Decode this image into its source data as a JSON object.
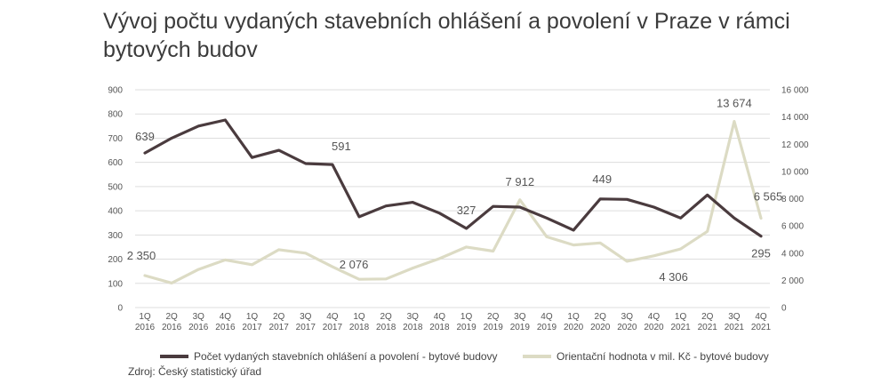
{
  "title": "Vývoj počtu vydaných stavebních ohlášení a povolení v Praze v rámci bytových budov",
  "source": "Zdroj: Český statistický úřad",
  "colors": {
    "count": "#4a3b3e",
    "value": "#dcdbc4",
    "grid": "#dddddd",
    "text": "#555555"
  },
  "chart_data": {
    "type": "line",
    "categories": [
      [
        "1Q",
        "2016"
      ],
      [
        "2Q",
        "2016"
      ],
      [
        "3Q",
        "2016"
      ],
      [
        "4Q",
        "2016"
      ],
      [
        "1Q",
        "2017"
      ],
      [
        "2Q",
        "2017"
      ],
      [
        "3Q",
        "2017"
      ],
      [
        "4Q",
        "2017"
      ],
      [
        "1Q",
        "2018"
      ],
      [
        "2Q",
        "2018"
      ],
      [
        "3Q",
        "2018"
      ],
      [
        "4Q",
        "2018"
      ],
      [
        "1Q",
        "2019"
      ],
      [
        "2Q",
        "2019"
      ],
      [
        "3Q",
        "2019"
      ],
      [
        "4Q",
        "2019"
      ],
      [
        "1Q",
        "2020"
      ],
      [
        "2Q",
        "2020"
      ],
      [
        "3Q",
        "2020"
      ],
      [
        "4Q",
        "2020"
      ],
      [
        "1Q",
        "2021"
      ],
      [
        "2Q",
        "2021"
      ],
      [
        "3Q",
        "2021"
      ],
      [
        "4Q",
        "2021"
      ]
    ],
    "y_left": {
      "min": 0,
      "max": 900,
      "step": 100,
      "tick_labels": [
        "0",
        "100",
        "200",
        "300",
        "400",
        "500",
        "600",
        "700",
        "800",
        "900"
      ]
    },
    "y_right": {
      "min": 0,
      "max": 16000,
      "step": 2000,
      "tick_labels": [
        "0",
        "2 000",
        "4 000",
        "6 000",
        "8 000",
        "10 000",
        "12 000",
        "14 000",
        "16 000"
      ]
    },
    "series": [
      {
        "name": "Počet vydaných stavebních ohlášení a povolení - bytové budovy",
        "axis": "left",
        "values": [
          639,
          700,
          750,
          775,
          620,
          650,
          595,
          591,
          375,
          420,
          435,
          390,
          327,
          418,
          415,
          370,
          320,
          449,
          447,
          415,
          370,
          465,
          370,
          295
        ],
        "labels": [
          {
            "index": 0,
            "text": "639"
          },
          {
            "index": 7,
            "text": "591"
          },
          {
            "index": 12,
            "text": "327"
          },
          {
            "index": 17,
            "text": "449"
          },
          {
            "index": 23,
            "text": "295"
          }
        ]
      },
      {
        "name": "Orientační  hodnota v mil. Kč - bytové budovy",
        "axis": "right",
        "values": [
          2350,
          1800,
          2800,
          3500,
          3150,
          4250,
          4000,
          3000,
          2076,
          2100,
          2900,
          3600,
          4450,
          4150,
          7912,
          5200,
          4600,
          4750,
          3400,
          3800,
          4306,
          5600,
          13674,
          6565
        ],
        "labels": [
          {
            "index": 0,
            "text": "2 350"
          },
          {
            "index": 8,
            "text": "2 076"
          },
          {
            "index": 14,
            "text": "7 912"
          },
          {
            "index": 20,
            "text": "4 306"
          },
          {
            "index": 22,
            "text": "13 674"
          },
          {
            "index": 23,
            "text": "6 565"
          }
        ]
      }
    ],
    "legend_position": "bottom"
  }
}
